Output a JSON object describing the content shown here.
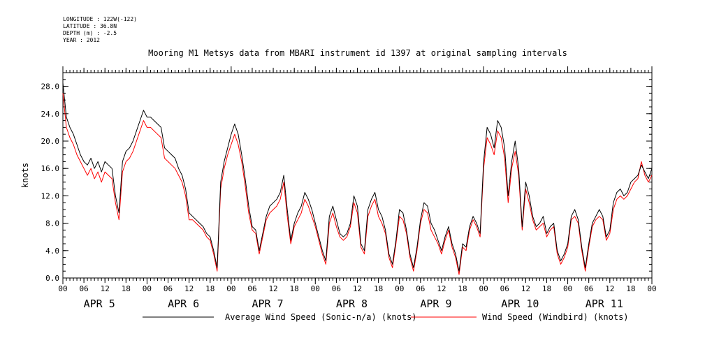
{
  "header": {
    "longitude": "LONGITUDE : 122W(-122)",
    "latitude": "LATITUDE : 36.8N",
    "depth": "DEPTH (m) : -2.5",
    "year": "YEAR : 2012"
  },
  "chart_data": {
    "type": "line",
    "title": "Mooring M1 Metsys data from MBARI instrument id 1397 at original sampling intervals",
    "ylabel": "knots",
    "xlabel": "",
    "ylim": [
      0,
      30
    ],
    "yticks": [
      "0.0",
      "4.0",
      "8.0",
      "12.0",
      "16.0",
      "20.0",
      "24.0",
      "28.0"
    ],
    "xlim_hours": [
      0,
      168
    ],
    "hour_tick_labels": [
      "00",
      "06",
      "12",
      "18"
    ],
    "days": [
      "APR 5",
      "APR 6",
      "APR 7",
      "APR 8",
      "APR 9",
      "APR 10",
      "APR 11"
    ],
    "grid": false,
    "legend_position": "bottom",
    "x": [
      0,
      1,
      2,
      3,
      4,
      5,
      6,
      7,
      8,
      9,
      10,
      11,
      12,
      13,
      14,
      15,
      16,
      17,
      18,
      19,
      20,
      21,
      22,
      23,
      24,
      25,
      26,
      27,
      28,
      29,
      30,
      31,
      32,
      33,
      34,
      35,
      36,
      37,
      38,
      39,
      40,
      41,
      42,
      43,
      44,
      45,
      46,
      47,
      48,
      49,
      50,
      51,
      52,
      53,
      54,
      55,
      56,
      57,
      58,
      59,
      60,
      61,
      62,
      63,
      64,
      65,
      66,
      67,
      68,
      69,
      70,
      71,
      72,
      73,
      74,
      75,
      76,
      77,
      78,
      79,
      80,
      81,
      82,
      83,
      84,
      85,
      86,
      87,
      88,
      89,
      90,
      91,
      92,
      93,
      94,
      95,
      96,
      97,
      98,
      99,
      100,
      101,
      102,
      103,
      104,
      105,
      106,
      107,
      108,
      109,
      110,
      111,
      112,
      113,
      114,
      115,
      116,
      117,
      118,
      119,
      120,
      121,
      122,
      123,
      124,
      125,
      126,
      127,
      128,
      129,
      130,
      131,
      132,
      133,
      134,
      135,
      136,
      137,
      138,
      139,
      140,
      141,
      142,
      143,
      144,
      145,
      146,
      147,
      148,
      149,
      150,
      151,
      152,
      153,
      154,
      155,
      156,
      157,
      158,
      159,
      160,
      161,
      162,
      163,
      164,
      165,
      166,
      167,
      168
    ],
    "series": [
      {
        "name": "Average Wind Speed (Sonic-n/a) (knots)",
        "color": "#000000",
        "values": [
          28.5,
          23.5,
          22.0,
          21.0,
          19.5,
          18.0,
          17.0,
          16.5,
          17.5,
          16.0,
          17.0,
          15.5,
          17.0,
          16.5,
          16.0,
          12.0,
          9.5,
          17.0,
          18.5,
          19.0,
          20.0,
          21.5,
          23.0,
          24.5,
          23.5,
          23.5,
          23.0,
          22.5,
          22.0,
          19.0,
          18.5,
          18.0,
          17.5,
          16.0,
          15.0,
          13.0,
          9.5,
          9.0,
          8.5,
          8.0,
          7.5,
          6.5,
          6.0,
          4.0,
          1.5,
          14.0,
          17.0,
          19.0,
          21.0,
          22.5,
          21.0,
          18.0,
          14.5,
          10.5,
          7.5,
          7.0,
          4.0,
          6.5,
          9.0,
          10.5,
          11.0,
          11.5,
          12.5,
          15.0,
          10.0,
          5.5,
          8.0,
          9.5,
          10.5,
          12.5,
          11.5,
          10.0,
          8.0,
          6.0,
          4.0,
          2.5,
          9.0,
          10.5,
          8.5,
          6.5,
          6.0,
          6.5,
          8.0,
          12.0,
          10.5,
          5.0,
          4.0,
          10.0,
          11.5,
          12.5,
          10.0,
          9.0,
          7.0,
          3.5,
          2.0,
          5.5,
          10.0,
          9.5,
          7.0,
          3.5,
          1.5,
          4.5,
          8.5,
          11.0,
          10.5,
          8.0,
          7.0,
          5.5,
          4.0,
          6.0,
          7.5,
          5.0,
          3.5,
          1.0,
          5.0,
          4.5,
          7.5,
          9.0,
          8.0,
          6.5,
          17.0,
          22.0,
          21.0,
          19.0,
          23.0,
          22.0,
          19.0,
          12.0,
          17.0,
          20.0,
          16.0,
          7.5,
          14.0,
          12.0,
          9.0,
          7.5,
          8.0,
          9.0,
          6.5,
          7.5,
          8.0,
          4.0,
          2.5,
          3.5,
          5.0,
          9.0,
          10.0,
          8.5,
          4.5,
          1.5,
          5.0,
          8.0,
          9.0,
          10.0,
          9.0,
          6.0,
          7.0,
          11.0,
          12.5,
          13.0,
          12.0,
          12.5,
          14.0,
          14.5,
          15.0,
          16.5,
          15.5,
          14.5,
          16.0
        ]
      },
      {
        "name": "Wind Speed (Windbird) (knots)",
        "color": "#ff0000",
        "values": [
          27.0,
          22.0,
          20.5,
          19.5,
          18.0,
          17.0,
          16.0,
          15.0,
          16.0,
          14.5,
          15.5,
          14.0,
          15.5,
          15.0,
          14.5,
          11.0,
          8.5,
          15.5,
          17.0,
          17.5,
          18.5,
          20.0,
          21.5,
          23.0,
          22.0,
          22.0,
          21.5,
          21.0,
          20.5,
          17.5,
          17.0,
          16.5,
          16.0,
          15.0,
          14.0,
          12.0,
          8.5,
          8.5,
          8.0,
          7.5,
          7.0,
          6.0,
          5.5,
          3.5,
          1.0,
          13.0,
          16.0,
          18.0,
          19.5,
          21.0,
          19.5,
          17.0,
          13.5,
          9.5,
          7.0,
          6.5,
          3.5,
          6.0,
          8.5,
          9.5,
          10.0,
          10.5,
          11.5,
          14.0,
          9.0,
          5.0,
          7.5,
          8.5,
          9.5,
          11.5,
          10.5,
          9.0,
          7.5,
          5.5,
          3.5,
          2.0,
          8.0,
          9.5,
          7.5,
          6.0,
          5.5,
          6.0,
          7.5,
          11.0,
          9.5,
          4.5,
          3.5,
          9.0,
          10.5,
          11.5,
          9.0,
          8.0,
          6.5,
          3.0,
          1.5,
          5.0,
          9.0,
          8.5,
          6.5,
          3.0,
          1.0,
          4.0,
          8.0,
          10.0,
          9.5,
          7.0,
          6.0,
          5.0,
          3.5,
          5.5,
          7.0,
          4.5,
          3.0,
          0.5,
          4.5,
          4.0,
          7.0,
          8.5,
          7.5,
          6.0,
          16.0,
          20.5,
          19.5,
          18.0,
          21.5,
          20.5,
          17.5,
          11.0,
          16.0,
          18.5,
          15.0,
          7.0,
          13.0,
          11.0,
          8.5,
          7.0,
          7.5,
          8.0,
          6.0,
          7.0,
          7.5,
          3.5,
          2.0,
          3.0,
          4.5,
          8.5,
          9.0,
          8.0,
          4.0,
          1.0,
          4.5,
          7.5,
          8.5,
          9.0,
          8.5,
          5.5,
          6.5,
          10.0,
          11.5,
          12.0,
          11.5,
          12.0,
          13.0,
          14.0,
          14.5,
          17.0,
          15.0,
          14.0,
          15.0
        ]
      }
    ]
  }
}
